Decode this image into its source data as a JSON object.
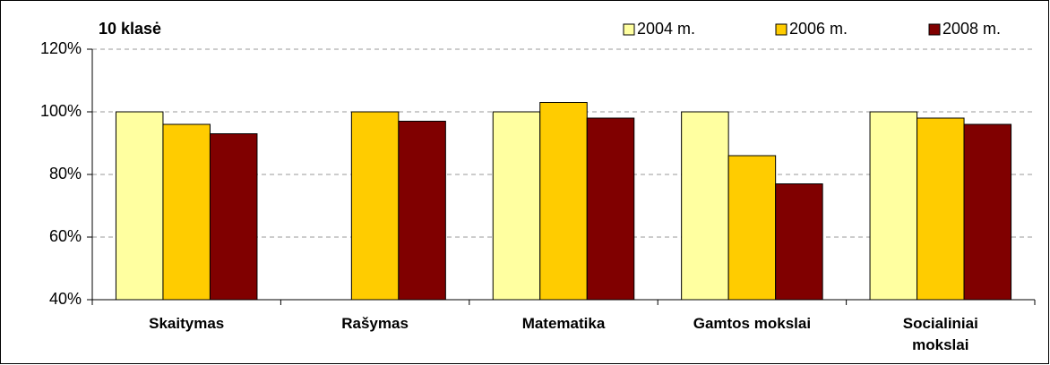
{
  "chart_data": {
    "type": "bar",
    "title": "10 klasė",
    "categories": [
      "Skaitymas",
      "Rašymas",
      "Matematika",
      "Gamtos mokslai",
      "Socialiniai mokslai"
    ],
    "series": [
      {
        "name": "2004 m.",
        "color": "#ffffa0",
        "values": [
          100,
          null,
          100,
          100,
          100
        ]
      },
      {
        "name": "2006 m.",
        "color": "#ffcc00",
        "values": [
          96,
          100,
          103,
          86,
          98
        ]
      },
      {
        "name": "2008 m.",
        "color": "#800000",
        "values": [
          93,
          97,
          98,
          77,
          96
        ]
      }
    ],
    "ylim": [
      40,
      120
    ],
    "yticks": [
      {
        "value": 40,
        "label": "40%"
      },
      {
        "value": 60,
        "label": "60%"
      },
      {
        "value": 80,
        "label": "80%"
      },
      {
        "value": 100,
        "label": "100%"
      },
      {
        "value": 120,
        "label": "120%"
      }
    ],
    "grid": true,
    "legend": "top-right"
  }
}
